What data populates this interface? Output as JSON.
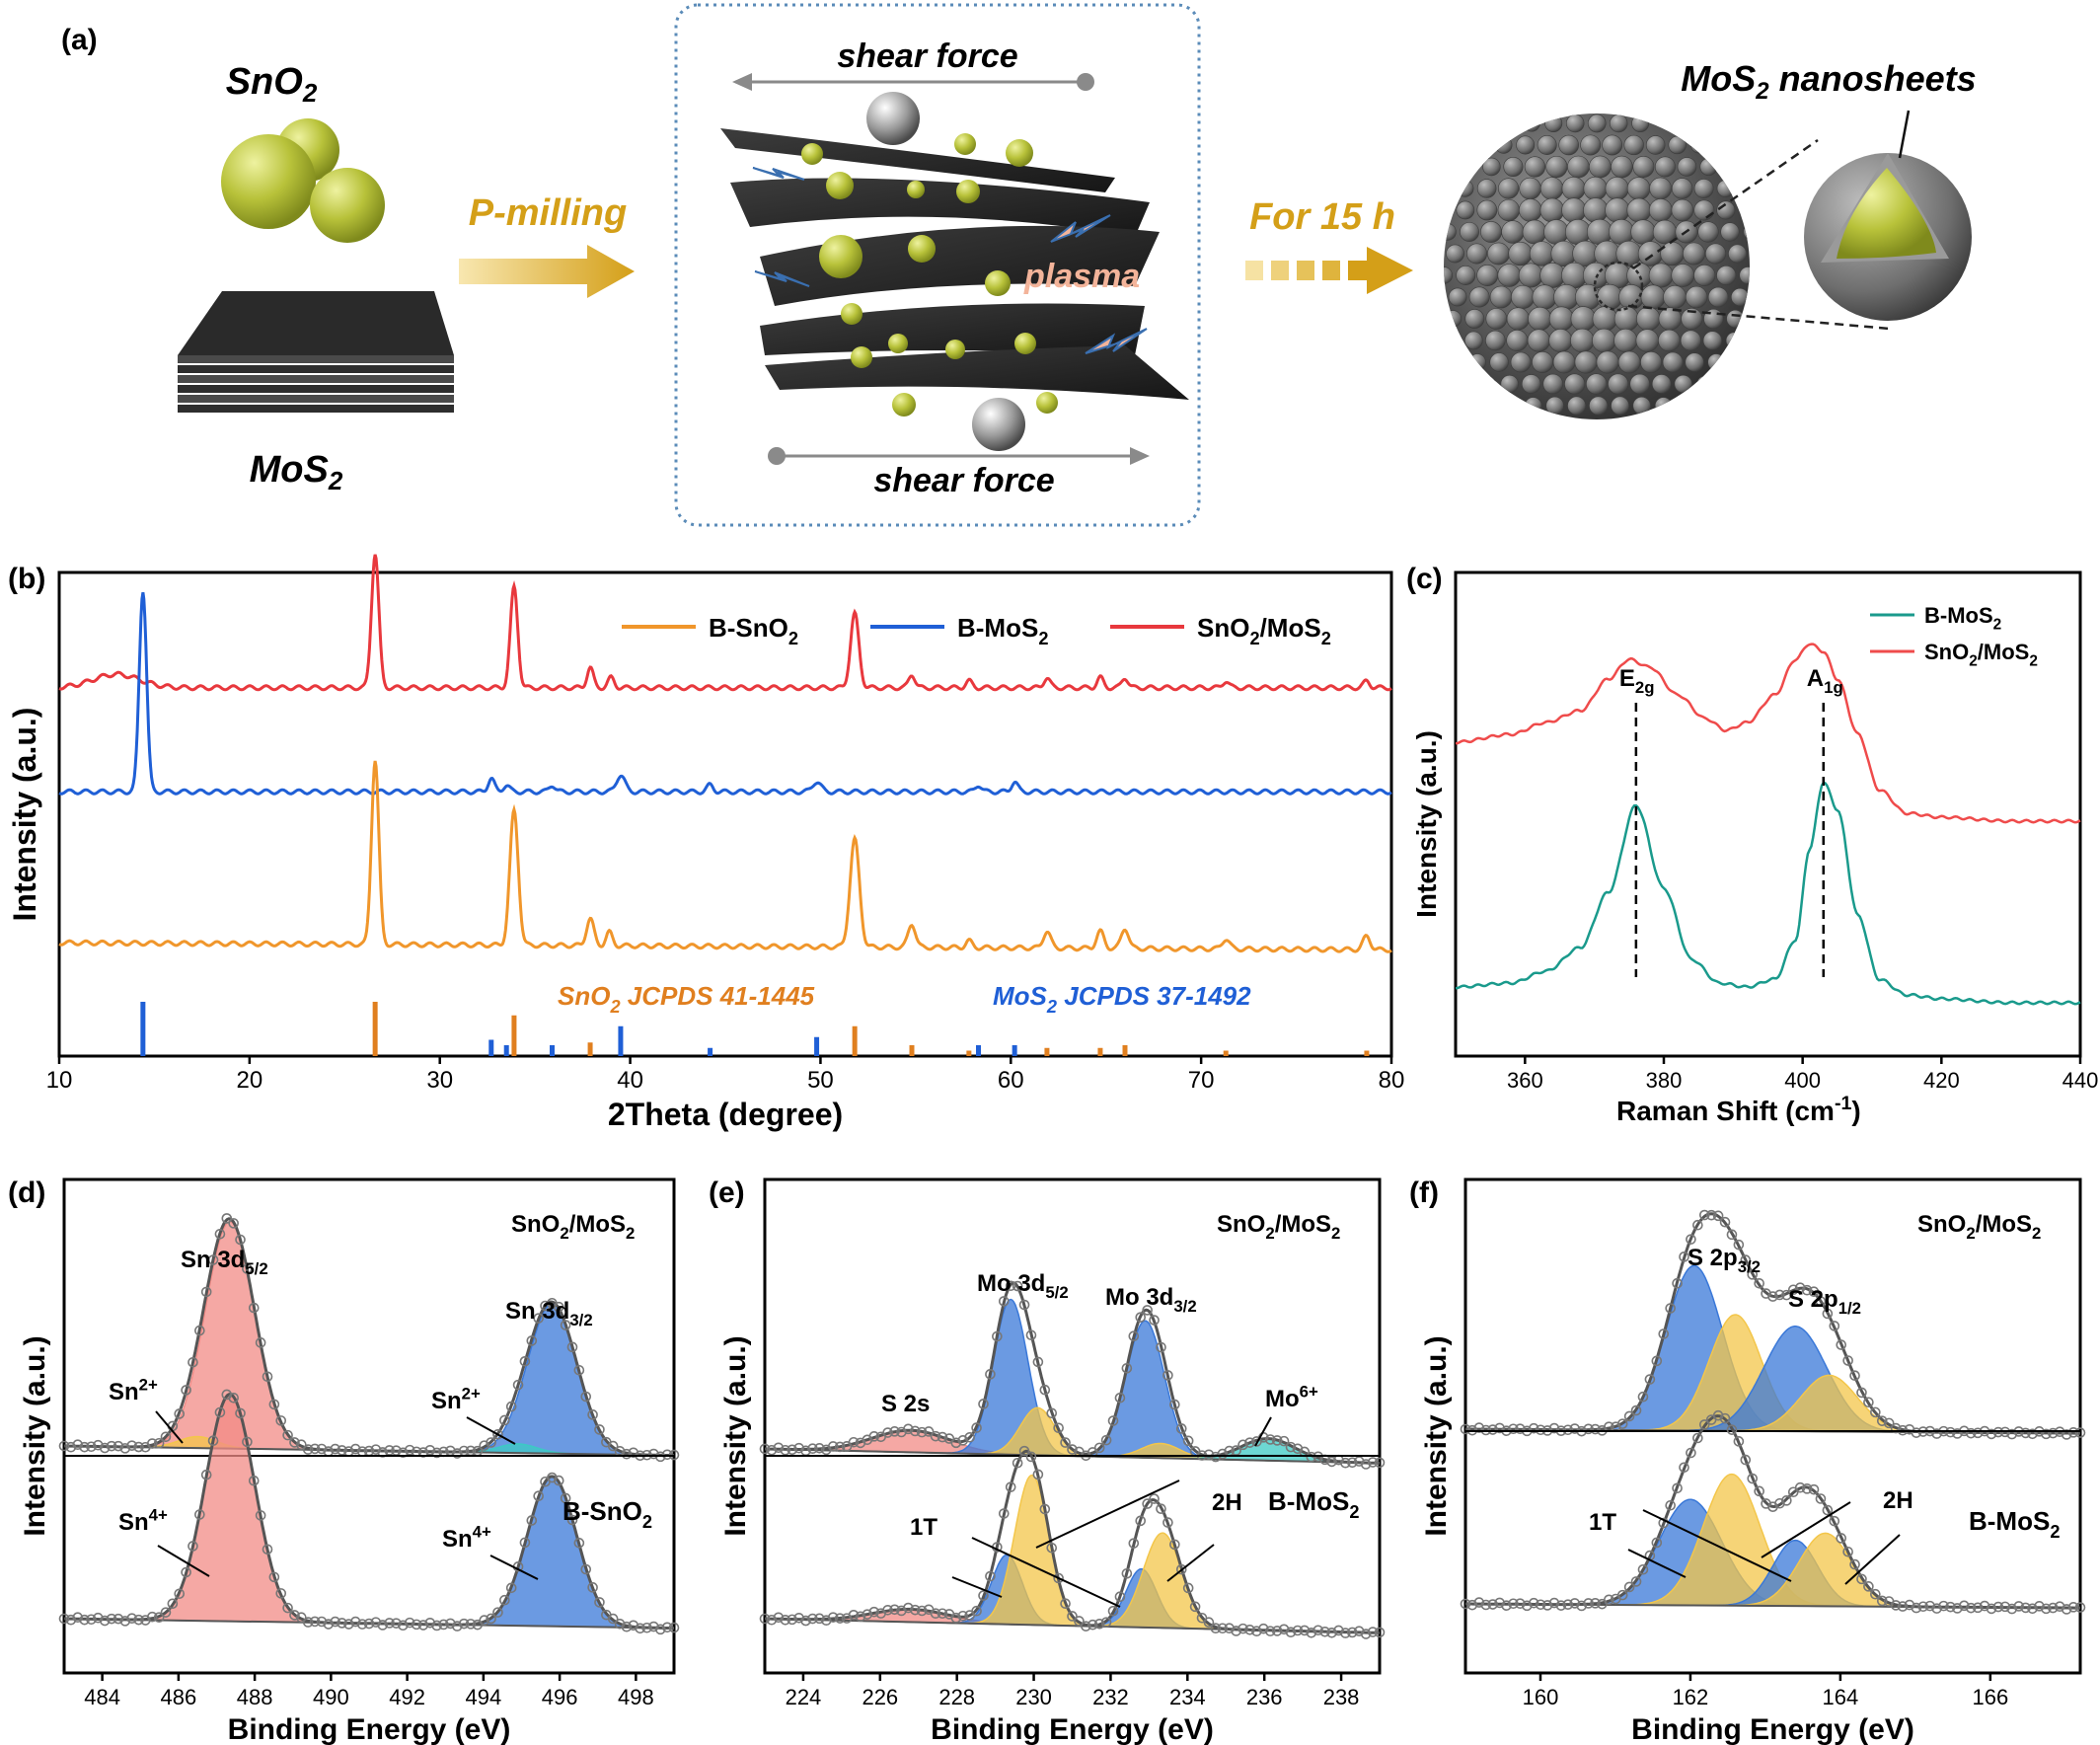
{
  "panel_a": {
    "label": "(a)",
    "sno2_label": "SnO2",
    "mos2_label": "MoS2",
    "pmilling_label": "P-milling",
    "shear_top": "shear force",
    "shear_bottom": "shear force",
    "plasma_label": "plasma",
    "time_label": "For 15 h",
    "nanosheets_label": "MoS2 nanosheets",
    "colors": {
      "gold": "#d4a326",
      "green": "#b8c23a",
      "dark": "#2b2b2b",
      "plasma": "#f3b49a",
      "box": "#5a8bb8"
    }
  },
  "chart_data": [
    {
      "panel": "(b)",
      "type": "line",
      "xlabel": "2Theta (degree)",
      "ylabel": "Intensity (a.u.)",
      "xlim": [
        10,
        80
      ],
      "xticks": [
        10,
        20,
        30,
        40,
        50,
        60,
        70,
        80
      ],
      "legend": [
        "B-SnO2",
        "B-MoS2",
        "SnO2/MoS2"
      ],
      "legend_position": "top",
      "series": [
        {
          "name": "SnO2/MoS2",
          "color": "#e8383d",
          "baseline": 0.78,
          "peaks": [
            [
              13,
              0.04,
              2.2
            ],
            [
              26.6,
              0.4,
              0.35
            ],
            [
              33.9,
              0.3,
              0.35
            ],
            [
              37.9,
              0.06,
              0.3
            ],
            [
              39,
              0.03,
              0.3
            ],
            [
              51.8,
              0.22,
              0.4
            ],
            [
              54.8,
              0.04,
              0.3
            ],
            [
              57.8,
              0.02,
              0.3
            ],
            [
              61.9,
              0.03,
              0.3
            ],
            [
              64.7,
              0.03,
              0.3
            ],
            [
              66,
              0.03,
              0.3
            ],
            [
              71.3,
              0.02,
              0.3
            ],
            [
              78.7,
              0.02,
              0.3
            ]
          ]
        },
        {
          "name": "B-MoS2",
          "color": "#1f5fd6",
          "baseline": 0.47,
          "peaks": [
            [
              14.4,
              0.6,
              0.35
            ],
            [
              32.7,
              0.04,
              0.3
            ],
            [
              33.5,
              0.02,
              0.3
            ],
            [
              35.9,
              0.02,
              0.3
            ],
            [
              39.5,
              0.05,
              0.4
            ],
            [
              44.2,
              0.02,
              0.3
            ],
            [
              49.8,
              0.03,
              0.4
            ],
            [
              58.3,
              0.02,
              0.3
            ],
            [
              60.2,
              0.03,
              0.3
            ]
          ]
        },
        {
          "name": "B-SnO2",
          "color": "#f0962b",
          "baseline": 0.0,
          "peaks": [
            [
              26.6,
              0.55,
              0.35
            ],
            [
              33.9,
              0.4,
              0.4
            ],
            [
              37.9,
              0.08,
              0.35
            ],
            [
              38.9,
              0.04,
              0.3
            ],
            [
              51.8,
              0.32,
              0.45
            ],
            [
              54.8,
              0.07,
              0.35
            ],
            [
              57.8,
              0.02,
              0.3
            ],
            [
              61.9,
              0.05,
              0.35
            ],
            [
              64.7,
              0.05,
              0.35
            ],
            [
              66,
              0.06,
              0.35
            ],
            [
              71.3,
              0.03,
              0.35
            ],
            [
              78.7,
              0.04,
              0.35
            ]
          ]
        }
      ],
      "references": [
        {
          "name": "SnO2 JCPDS 41-1445",
          "color": "#e07f1f",
          "lines": [
            [
              26.6,
              1.0
            ],
            [
              33.9,
              0.75
            ],
            [
              37.9,
              0.25
            ],
            [
              51.8,
              0.55
            ],
            [
              54.8,
              0.2
            ],
            [
              57.8,
              0.1
            ],
            [
              61.9,
              0.15
            ],
            [
              64.7,
              0.15
            ],
            [
              66,
              0.2
            ],
            [
              71.3,
              0.1
            ],
            [
              78.7,
              0.1
            ]
          ]
        },
        {
          "name": "MoS2 JCPDS 37-1492",
          "color": "#1f5fd6",
          "lines": [
            [
              14.4,
              1.0
            ],
            [
              32.7,
              0.3
            ],
            [
              33.5,
              0.2
            ],
            [
              35.9,
              0.2
            ],
            [
              39.5,
              0.55
            ],
            [
              44.2,
              0.15
            ],
            [
              49.8,
              0.35
            ],
            [
              58.3,
              0.2
            ],
            [
              60.2,
              0.2
            ]
          ]
        }
      ]
    },
    {
      "panel": "(c)",
      "type": "line",
      "xlabel": "Raman Shift (cm-1)",
      "ylabel": "Intensity (a.u.)",
      "xlim": [
        350,
        440
      ],
      "xticks": [
        360,
        380,
        400,
        420,
        440
      ],
      "legend": [
        "B-MoS2",
        "SnO2/MoS2"
      ],
      "legend_position": "top-right",
      "annotations": [
        "E2g",
        "A1g"
      ],
      "peak_positions": [
        376,
        403
      ],
      "series": [
        {
          "name": "B-MoS2",
          "color": "#1a9a8c",
          "points": [
            [
              350,
              0.1
            ],
            [
              358,
              0.11
            ],
            [
              363,
              0.14
            ],
            [
              368,
              0.2
            ],
            [
              372,
              0.34
            ],
            [
              376,
              0.56
            ],
            [
              380,
              0.35
            ],
            [
              384,
              0.17
            ],
            [
              388,
              0.11
            ],
            [
              392,
              0.1
            ],
            [
              396,
              0.12
            ],
            [
              399,
              0.22
            ],
            [
              401,
              0.45
            ],
            [
              403,
              0.62
            ],
            [
              405,
              0.55
            ],
            [
              408,
              0.28
            ],
            [
              411,
              0.12
            ],
            [
              415,
              0.08
            ],
            [
              420,
              0.07
            ],
            [
              430,
              0.06
            ],
            [
              440,
              0.06
            ]
          ]
        },
        {
          "name": "SnO2/MoS2",
          "color": "#ef4b4b",
          "points": [
            [
              350,
              0.72
            ],
            [
              358,
              0.74
            ],
            [
              363,
              0.77
            ],
            [
              368,
              0.8
            ],
            [
              372,
              0.88
            ],
            [
              375,
              0.93
            ],
            [
              378,
              0.91
            ],
            [
              382,
              0.84
            ],
            [
              386,
              0.78
            ],
            [
              389,
              0.75
            ],
            [
              392,
              0.77
            ],
            [
              396,
              0.84
            ],
            [
              399,
              0.93
            ],
            [
              401,
              0.97
            ],
            [
              403,
              0.95
            ],
            [
              405,
              0.88
            ],
            [
              408,
              0.74
            ],
            [
              411,
              0.6
            ],
            [
              415,
              0.54
            ],
            [
              420,
              0.53
            ],
            [
              430,
              0.52
            ],
            [
              440,
              0.52
            ]
          ]
        }
      ]
    },
    {
      "panel": "(d)",
      "type": "area",
      "xlabel": "Binding Energy (eV)",
      "ylabel": "Intensity (a.u.)",
      "xlim": [
        483,
        499
      ],
      "xticks": [
        484,
        486,
        488,
        490,
        492,
        494,
        496,
        498
      ],
      "top_label": "SnO2/MoS2",
      "bottom_label": "B-SnO2",
      "annotations": [
        "Sn 3d5/2",
        "Sn 3d3/2",
        "Sn2+",
        "Sn2+",
        "Sn4+",
        "Sn4+"
      ],
      "top_components": [
        {
          "center": 487.35,
          "height": 1.0,
          "width": 0.65,
          "color": "#f28b86"
        },
        {
          "center": 486.5,
          "height": 0.05,
          "width": 0.5,
          "color": "#f3c64a"
        },
        {
          "center": 495.8,
          "height": 0.66,
          "width": 0.65,
          "color": "#3a78d8"
        },
        {
          "center": 494.9,
          "height": 0.04,
          "width": 0.5,
          "color": "#3cc9c4"
        }
      ],
      "bottom_components": [
        {
          "center": 487.35,
          "height": 1.0,
          "width": 0.65,
          "color": "#f28b86"
        },
        {
          "center": 495.8,
          "height": 0.66,
          "width": 0.65,
          "color": "#3a78d8"
        }
      ]
    },
    {
      "panel": "(e)",
      "type": "area",
      "xlabel": "Binding Energy (eV)",
      "ylabel": "Intensity (a.u.)",
      "xlim": [
        223,
        239
      ],
      "xticks": [
        224,
        226,
        228,
        230,
        232,
        234,
        236,
        238
      ],
      "top_label": "SnO2/MoS2",
      "bottom_label": "B-MoS2",
      "annotations": [
        "S 2s",
        "Mo 3d5/2",
        "Mo 3d3/2",
        "Mo6+",
        "1T",
        "2H"
      ],
      "top_components": [
        {
          "center": 226.8,
          "height": 0.12,
          "width": 1.0,
          "color": "#f28b86"
        },
        {
          "center": 229.4,
          "height": 0.85,
          "width": 0.45,
          "color": "#3a78d8"
        },
        {
          "center": 230.1,
          "height": 0.26,
          "width": 0.45,
          "color": "#f3c64a"
        },
        {
          "center": 232.9,
          "height": 0.75,
          "width": 0.5,
          "color": "#3a78d8"
        },
        {
          "center": 233.3,
          "height": 0.08,
          "width": 0.5,
          "color": "#f3c64a"
        },
        {
          "center": 236.1,
          "height": 0.12,
          "width": 0.7,
          "color": "#3cc9c4"
        }
      ],
      "bottom_components": [
        {
          "center": 226.8,
          "height": 0.07,
          "width": 1.0,
          "color": "#f28b86"
        },
        {
          "center": 229.3,
          "height": 0.38,
          "width": 0.4,
          "color": "#3a78d8"
        },
        {
          "center": 229.95,
          "height": 0.82,
          "width": 0.45,
          "color": "#f3c64a"
        },
        {
          "center": 232.8,
          "height": 0.32,
          "width": 0.4,
          "color": "#3a78d8"
        },
        {
          "center": 233.35,
          "height": 0.52,
          "width": 0.5,
          "color": "#f3c64a"
        }
      ]
    },
    {
      "panel": "(f)",
      "type": "area",
      "xlabel": "Binding Energy (eV)",
      "ylabel": "Intensity (a.u.)",
      "xlim": [
        159,
        167.2
      ],
      "xticks": [
        160,
        162,
        164,
        166
      ],
      "top_label": "SnO2/MoS2",
      "bottom_label": "B-MoS2",
      "annotations": [
        "S 2p3/2",
        "S 2p1/2",
        "1T",
        "2H"
      ],
      "top_components": [
        {
          "center": 162.05,
          "height": 0.88,
          "width": 0.38,
          "color": "#3a78d8"
        },
        {
          "center": 162.6,
          "height": 0.62,
          "width": 0.35,
          "color": "#f3c64a"
        },
        {
          "center": 163.4,
          "height": 0.56,
          "width": 0.42,
          "color": "#3a78d8"
        },
        {
          "center": 163.85,
          "height": 0.3,
          "width": 0.38,
          "color": "#f3c64a"
        }
      ],
      "bottom_components": [
        {
          "center": 162.0,
          "height": 0.58,
          "width": 0.42,
          "color": "#3a78d8"
        },
        {
          "center": 162.55,
          "height": 0.72,
          "width": 0.38,
          "color": "#f3c64a"
        },
        {
          "center": 163.4,
          "height": 0.36,
          "width": 0.3,
          "color": "#3a78d8"
        },
        {
          "center": 163.8,
          "height": 0.4,
          "width": 0.35,
          "color": "#f3c64a"
        }
      ]
    }
  ]
}
